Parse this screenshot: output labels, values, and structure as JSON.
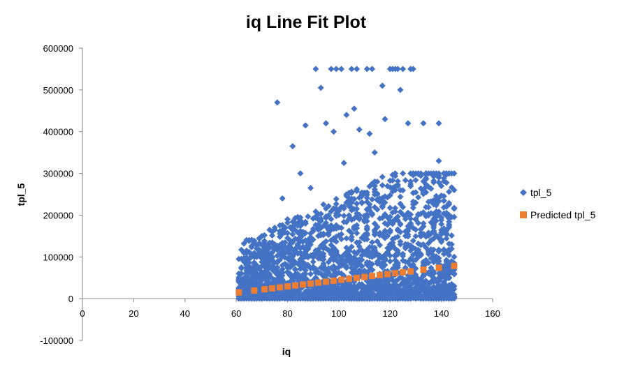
{
  "chart_data": {
    "type": "scatter",
    "title": "iq Line Fit  Plot",
    "xlabel": "iq",
    "ylabel": "tpl_5",
    "xlim": [
      0,
      160
    ],
    "ylim": [
      -100000,
      600000
    ],
    "x_ticks": [
      0,
      20,
      40,
      60,
      80,
      100,
      120,
      140,
      160
    ],
    "y_ticks": [
      -100000,
      0,
      100000,
      200000,
      300000,
      400000,
      500000,
      600000
    ],
    "y_tick_labels": [
      "-100000",
      "0",
      "100000",
      "200000",
      "300000",
      "400000",
      "500000",
      "600000"
    ],
    "x_tick_labels": [
      "0",
      "20",
      "40",
      "60",
      "80",
      "100",
      "120",
      "140",
      "160"
    ],
    "grid": false,
    "legend_position": "right",
    "series": [
      {
        "name": "tpl_5",
        "marker": "diamond",
        "color": "#4472C4",
        "x_range": [
          61,
          145
        ],
        "note_points": [
          [
            61,
            95000
          ],
          [
            61,
            60000
          ],
          [
            61,
            40000
          ],
          [
            61,
            20000
          ],
          [
            61,
            5000
          ],
          [
            67,
            78000
          ],
          [
            67,
            55000
          ],
          [
            67,
            30000
          ],
          [
            67,
            10000
          ],
          [
            71,
            125000
          ],
          [
            71,
            90000
          ],
          [
            71,
            60000
          ],
          [
            74,
            160000
          ],
          [
            74,
            110000
          ],
          [
            76,
            470000
          ],
          [
            78,
            240000
          ],
          [
            80,
            190000
          ],
          [
            82,
            365000
          ],
          [
            85,
            300000
          ],
          [
            87,
            415000
          ],
          [
            89,
            265000
          ],
          [
            91,
            550000
          ],
          [
            93,
            505000
          ],
          [
            95,
            420000
          ],
          [
            97,
            550000
          ],
          [
            98,
            400000
          ],
          [
            99,
            550000
          ],
          [
            101,
            550000
          ],
          [
            102,
            325000
          ],
          [
            103,
            440000
          ],
          [
            105,
            550000
          ],
          [
            106,
            455000
          ],
          [
            107,
            550000
          ],
          [
            108,
            405000
          ],
          [
            111,
            550000
          ],
          [
            112,
            395000
          ],
          [
            113,
            550000
          ],
          [
            114,
            350000
          ],
          [
            117,
            510000
          ],
          [
            118,
            430000
          ],
          [
            120,
            550000
          ],
          [
            121,
            550000
          ],
          [
            122,
            550000
          ],
          [
            123,
            550000
          ],
          [
            124,
            500000
          ],
          [
            125,
            550000
          ],
          [
            127,
            420000
          ],
          [
            128,
            550000
          ],
          [
            129,
            550000
          ],
          [
            133,
            420000
          ],
          [
            133,
            155000
          ],
          [
            133,
            80000
          ],
          [
            133,
            40000
          ],
          [
            139,
            420000
          ],
          [
            139,
            330000
          ],
          [
            139,
            290000
          ],
          [
            139,
            200000
          ],
          [
            139,
            145000
          ],
          [
            139,
            90000
          ],
          [
            139,
            50000
          ],
          [
            139,
            20000
          ],
          [
            145,
            260000
          ],
          [
            145,
            100000
          ],
          [
            145,
            80000
          ],
          [
            145,
            60000
          ],
          [
            145,
            30000
          ],
          [
            145,
            10000
          ]
        ]
      },
      {
        "name": "Predicted tpl_5",
        "marker": "square",
        "color": "#ED7D31",
        "x": [
          61,
          67,
          71,
          74,
          77,
          80,
          83,
          86,
          89,
          92,
          95,
          98,
          101,
          104,
          107,
          110,
          113,
          116,
          119,
          122,
          125,
          128,
          133,
          139,
          145
        ],
        "values": [
          15000,
          19500,
          22500,
          24800,
          27000,
          29300,
          31600,
          33800,
          36100,
          38400,
          40600,
          42900,
          45200,
          47400,
          49700,
          51900,
          54200,
          56500,
          58700,
          61000,
          63300,
          65500,
          69300,
          73900,
          78400
        ]
      }
    ]
  }
}
